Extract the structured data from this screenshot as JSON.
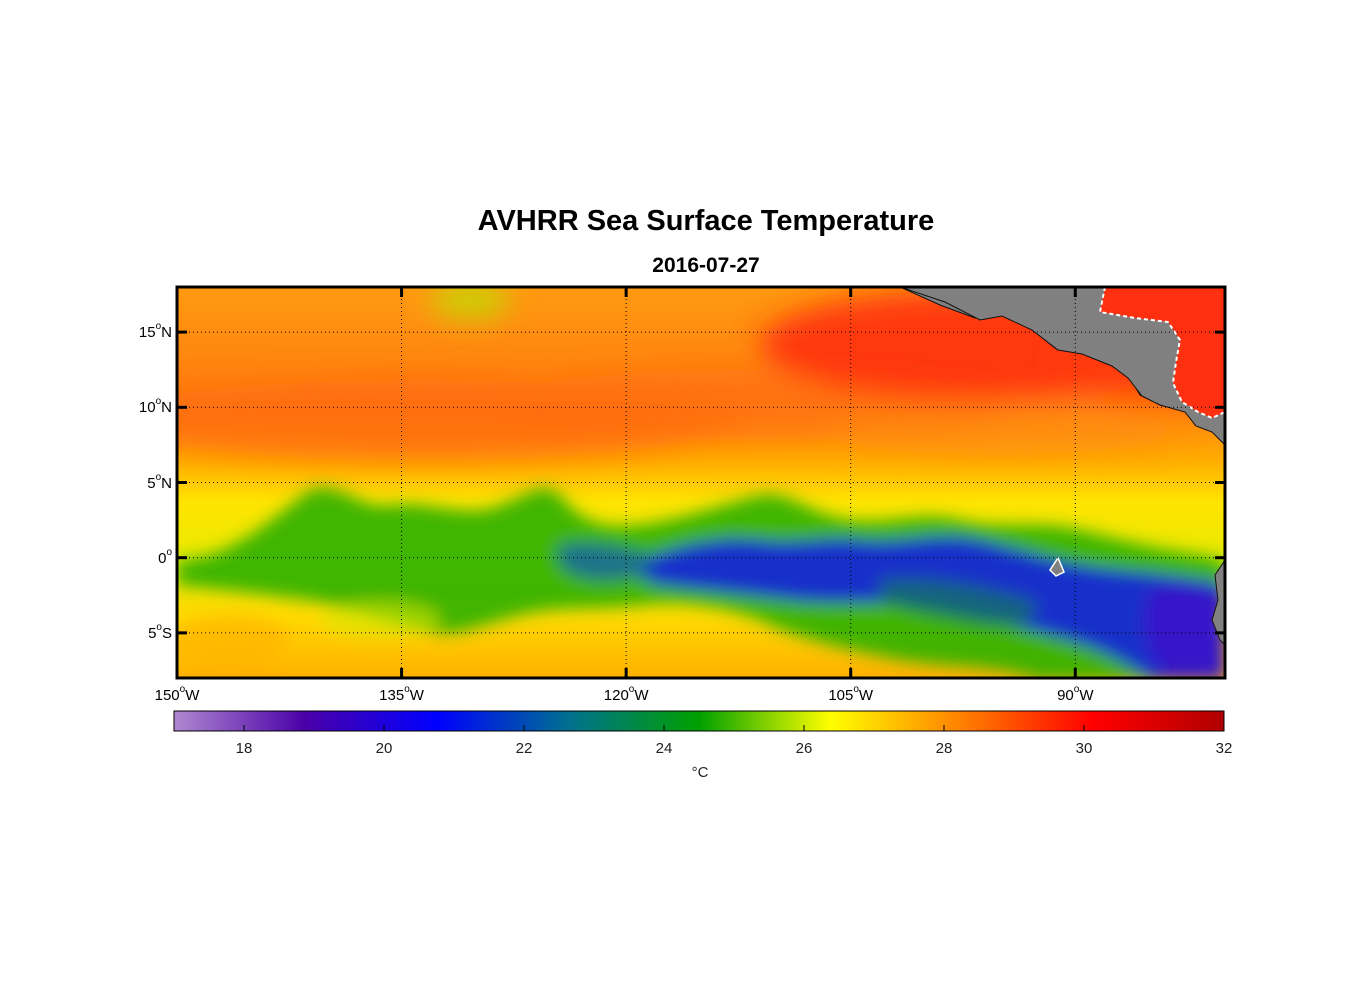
{
  "title": "AVHRR Sea Surface Temperature",
  "subtitle": "2016-07-27",
  "map": {
    "lat_ticks": [
      {
        "value": 15,
        "deg": "15",
        "hemi": "N"
      },
      {
        "value": 10,
        "deg": "10",
        "hemi": "N"
      },
      {
        "value": 5,
        "deg": "5",
        "hemi": "N"
      },
      {
        "value": 0,
        "deg": "0",
        "hemi": ""
      },
      {
        "value": -5,
        "deg": "5",
        "hemi": "S"
      }
    ],
    "lon_ticks": [
      {
        "value": -150,
        "deg": "150",
        "hemi": "W"
      },
      {
        "value": -135,
        "deg": "135",
        "hemi": "W"
      },
      {
        "value": -120,
        "deg": "120",
        "hemi": "W"
      },
      {
        "value": -105,
        "deg": "105",
        "hemi": "W"
      },
      {
        "value": -90,
        "deg": "90",
        "hemi": "W"
      }
    ],
    "lat_range": [
      -8,
      18
    ],
    "lon_range": [
      -150,
      -80
    ],
    "land_color": "#808080",
    "grid": "dotted"
  },
  "colorbar": {
    "min": 17,
    "max": 32,
    "ticks": [
      "18",
      "20",
      "22",
      "24",
      "26",
      "28",
      "30",
      "32"
    ],
    "unit": "°C",
    "colors": [
      "#b088d0",
      "#4a00a8",
      "#0000ff",
      "#007090",
      "#00a000",
      "#ffff00",
      "#ff8000",
      "#ff0000",
      "#b00000"
    ]
  }
}
